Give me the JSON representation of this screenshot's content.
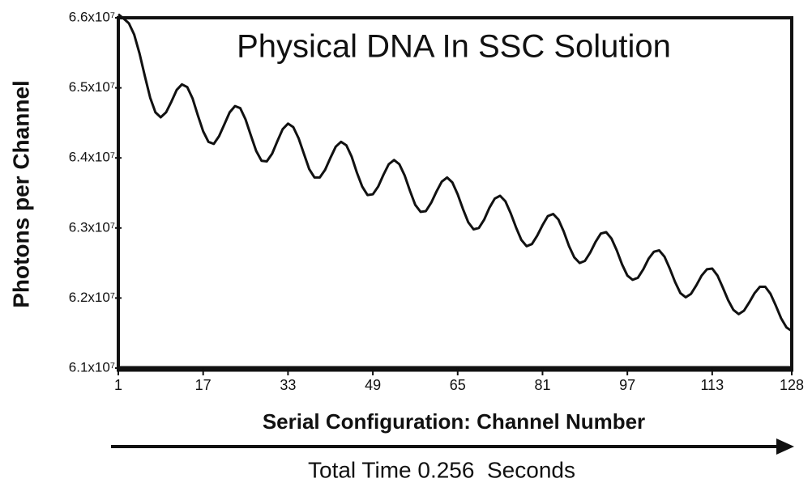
{
  "chart_data": {
    "type": "line",
    "title": "Physical DNA In SSC Solution",
    "xlabel": "Serial Configuration: Channel Number",
    "ylabel": "Photons per Channel",
    "annotation": "Total Time 0.256  Seconds",
    "color": "#111111",
    "xlim": [
      1,
      128
    ],
    "xticks": [
      1,
      17,
      33,
      49,
      65,
      81,
      97,
      113,
      128
    ],
    "ylim": [
      61000000,
      66000000
    ],
    "yticks": [
      {
        "value": 61000000,
        "label": "6.1x10⁷"
      },
      {
        "value": 62000000,
        "label": "6.2x10⁷"
      },
      {
        "value": 63000000,
        "label": "6.3x10⁷"
      },
      {
        "value": 64000000,
        "label": "6.4x10⁷"
      },
      {
        "value": 65000000,
        "label": "6.5x10⁷"
      },
      {
        "value": 66000000,
        "label": "6.6x10⁷"
      }
    ],
    "x": [
      1,
      2,
      3,
      4,
      5,
      6,
      7,
      8,
      9,
      10,
      11,
      12,
      13,
      14,
      15,
      16,
      17,
      18,
      19,
      20,
      21,
      22,
      23,
      24,
      25,
      26,
      27,
      28,
      29,
      30,
      31,
      32,
      33,
      34,
      35,
      36,
      37,
      38,
      39,
      40,
      41,
      42,
      43,
      44,
      45,
      46,
      47,
      48,
      49,
      50,
      51,
      52,
      53,
      54,
      55,
      56,
      57,
      58,
      59,
      60,
      61,
      62,
      63,
      64,
      65,
      66,
      67,
      68,
      69,
      70,
      71,
      72,
      73,
      74,
      75,
      76,
      77,
      78,
      79,
      80,
      81,
      82,
      83,
      84,
      85,
      86,
      87,
      88,
      89,
      90,
      91,
      92,
      93,
      94,
      95,
      96,
      97,
      98,
      99,
      100,
      101,
      102,
      103,
      104,
      105,
      106,
      107,
      108,
      109,
      110,
      111,
      112,
      113,
      114,
      115,
      116,
      117,
      118,
      119,
      120,
      121,
      122,
      123,
      124,
      125,
      126,
      127,
      128
    ],
    "values": [
      66050000,
      65990000,
      65920000,
      65760000,
      65490000,
      65170000,
      64860000,
      64650000,
      64580000,
      64650000,
      64800000,
      64970000,
      65050000,
      65010000,
      64850000,
      64610000,
      64380000,
      64230000,
      64200000,
      64310000,
      64480000,
      64650000,
      64740000,
      64710000,
      64550000,
      64320000,
      64100000,
      63960000,
      63950000,
      64060000,
      64240000,
      64410000,
      64490000,
      64440000,
      64280000,
      64060000,
      63840000,
      63720000,
      63720000,
      63830000,
      64000000,
      64160000,
      64230000,
      64180000,
      64020000,
      63790000,
      63590000,
      63470000,
      63480000,
      63590000,
      63760000,
      63910000,
      63970000,
      63910000,
      63750000,
      63530000,
      63330000,
      63230000,
      63240000,
      63360000,
      63520000,
      63660000,
      63720000,
      63650000,
      63480000,
      63270000,
      63080000,
      62980000,
      63000000,
      63120000,
      63290000,
      63420000,
      63460000,
      63380000,
      63210000,
      63010000,
      62830000,
      62740000,
      62770000,
      62890000,
      63040000,
      63170000,
      63200000,
      63120000,
      62950000,
      62740000,
      62580000,
      62500000,
      62530000,
      62650000,
      62800000,
      62920000,
      62940000,
      62850000,
      62680000,
      62480000,
      62320000,
      62260000,
      62290000,
      62410000,
      62560000,
      62660000,
      62680000,
      62590000,
      62420000,
      62230000,
      62070000,
      62010000,
      62060000,
      62180000,
      62320000,
      62410000,
      62420000,
      62320000,
      62150000,
      61970000,
      61830000,
      61770000,
      61820000,
      61940000,
      62070000,
      62160000,
      62160000,
      62060000,
      61890000,
      61710000,
      61580000,
      61530000
    ]
  }
}
